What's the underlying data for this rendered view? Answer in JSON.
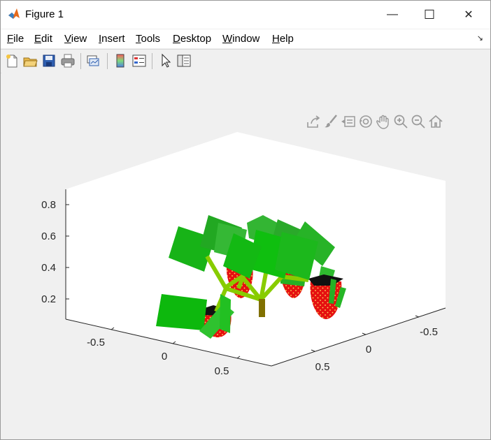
{
  "window": {
    "title": "Figure 1",
    "minimize_glyph": "—",
    "maximize_glyph": "☐",
    "close_glyph": "✕"
  },
  "menubar": {
    "items": [
      {
        "first": "F",
        "rest": "ile"
      },
      {
        "first": "E",
        "rest": "dit"
      },
      {
        "first": "V",
        "rest": "iew"
      },
      {
        "first": "I",
        "rest": "nsert"
      },
      {
        "first": "T",
        "rest": "ools"
      },
      {
        "first": "D",
        "rest": "esktop"
      },
      {
        "first": "W",
        "rest": "indow"
      },
      {
        "first": "H",
        "rest": "elp"
      }
    ],
    "dock_glyph": "↘"
  },
  "toolbar": {
    "icons": [
      "new-figure-icon",
      "open-file-icon",
      "save-icon",
      "print-icon",
      "link-plot-icon",
      "insert-colorbar-icon",
      "insert-legend-icon",
      "edit-plot-arrow-icon",
      "property-inspector-icon"
    ]
  },
  "axes_toolbar": {
    "icons": [
      "export-icon",
      "brush-icon",
      "data-tips-icon",
      "rotate-3d-icon",
      "pan-icon",
      "zoom-in-icon",
      "zoom-out-icon",
      "restore-view-icon"
    ]
  },
  "axes": {
    "z_ticks": [
      "0.2",
      "0.4",
      "0.6",
      "0.8"
    ],
    "x_ticks": [
      "-0.5",
      "0",
      "0.5"
    ],
    "y_ticks": [
      "-0.5",
      "0",
      "0.5"
    ]
  },
  "colors": {
    "leaf": "#22bb22",
    "stem": "#88cc00",
    "trunk": "#807000",
    "berry": "#e51010",
    "seed": "#ffe060",
    "calyx": "#111111"
  }
}
